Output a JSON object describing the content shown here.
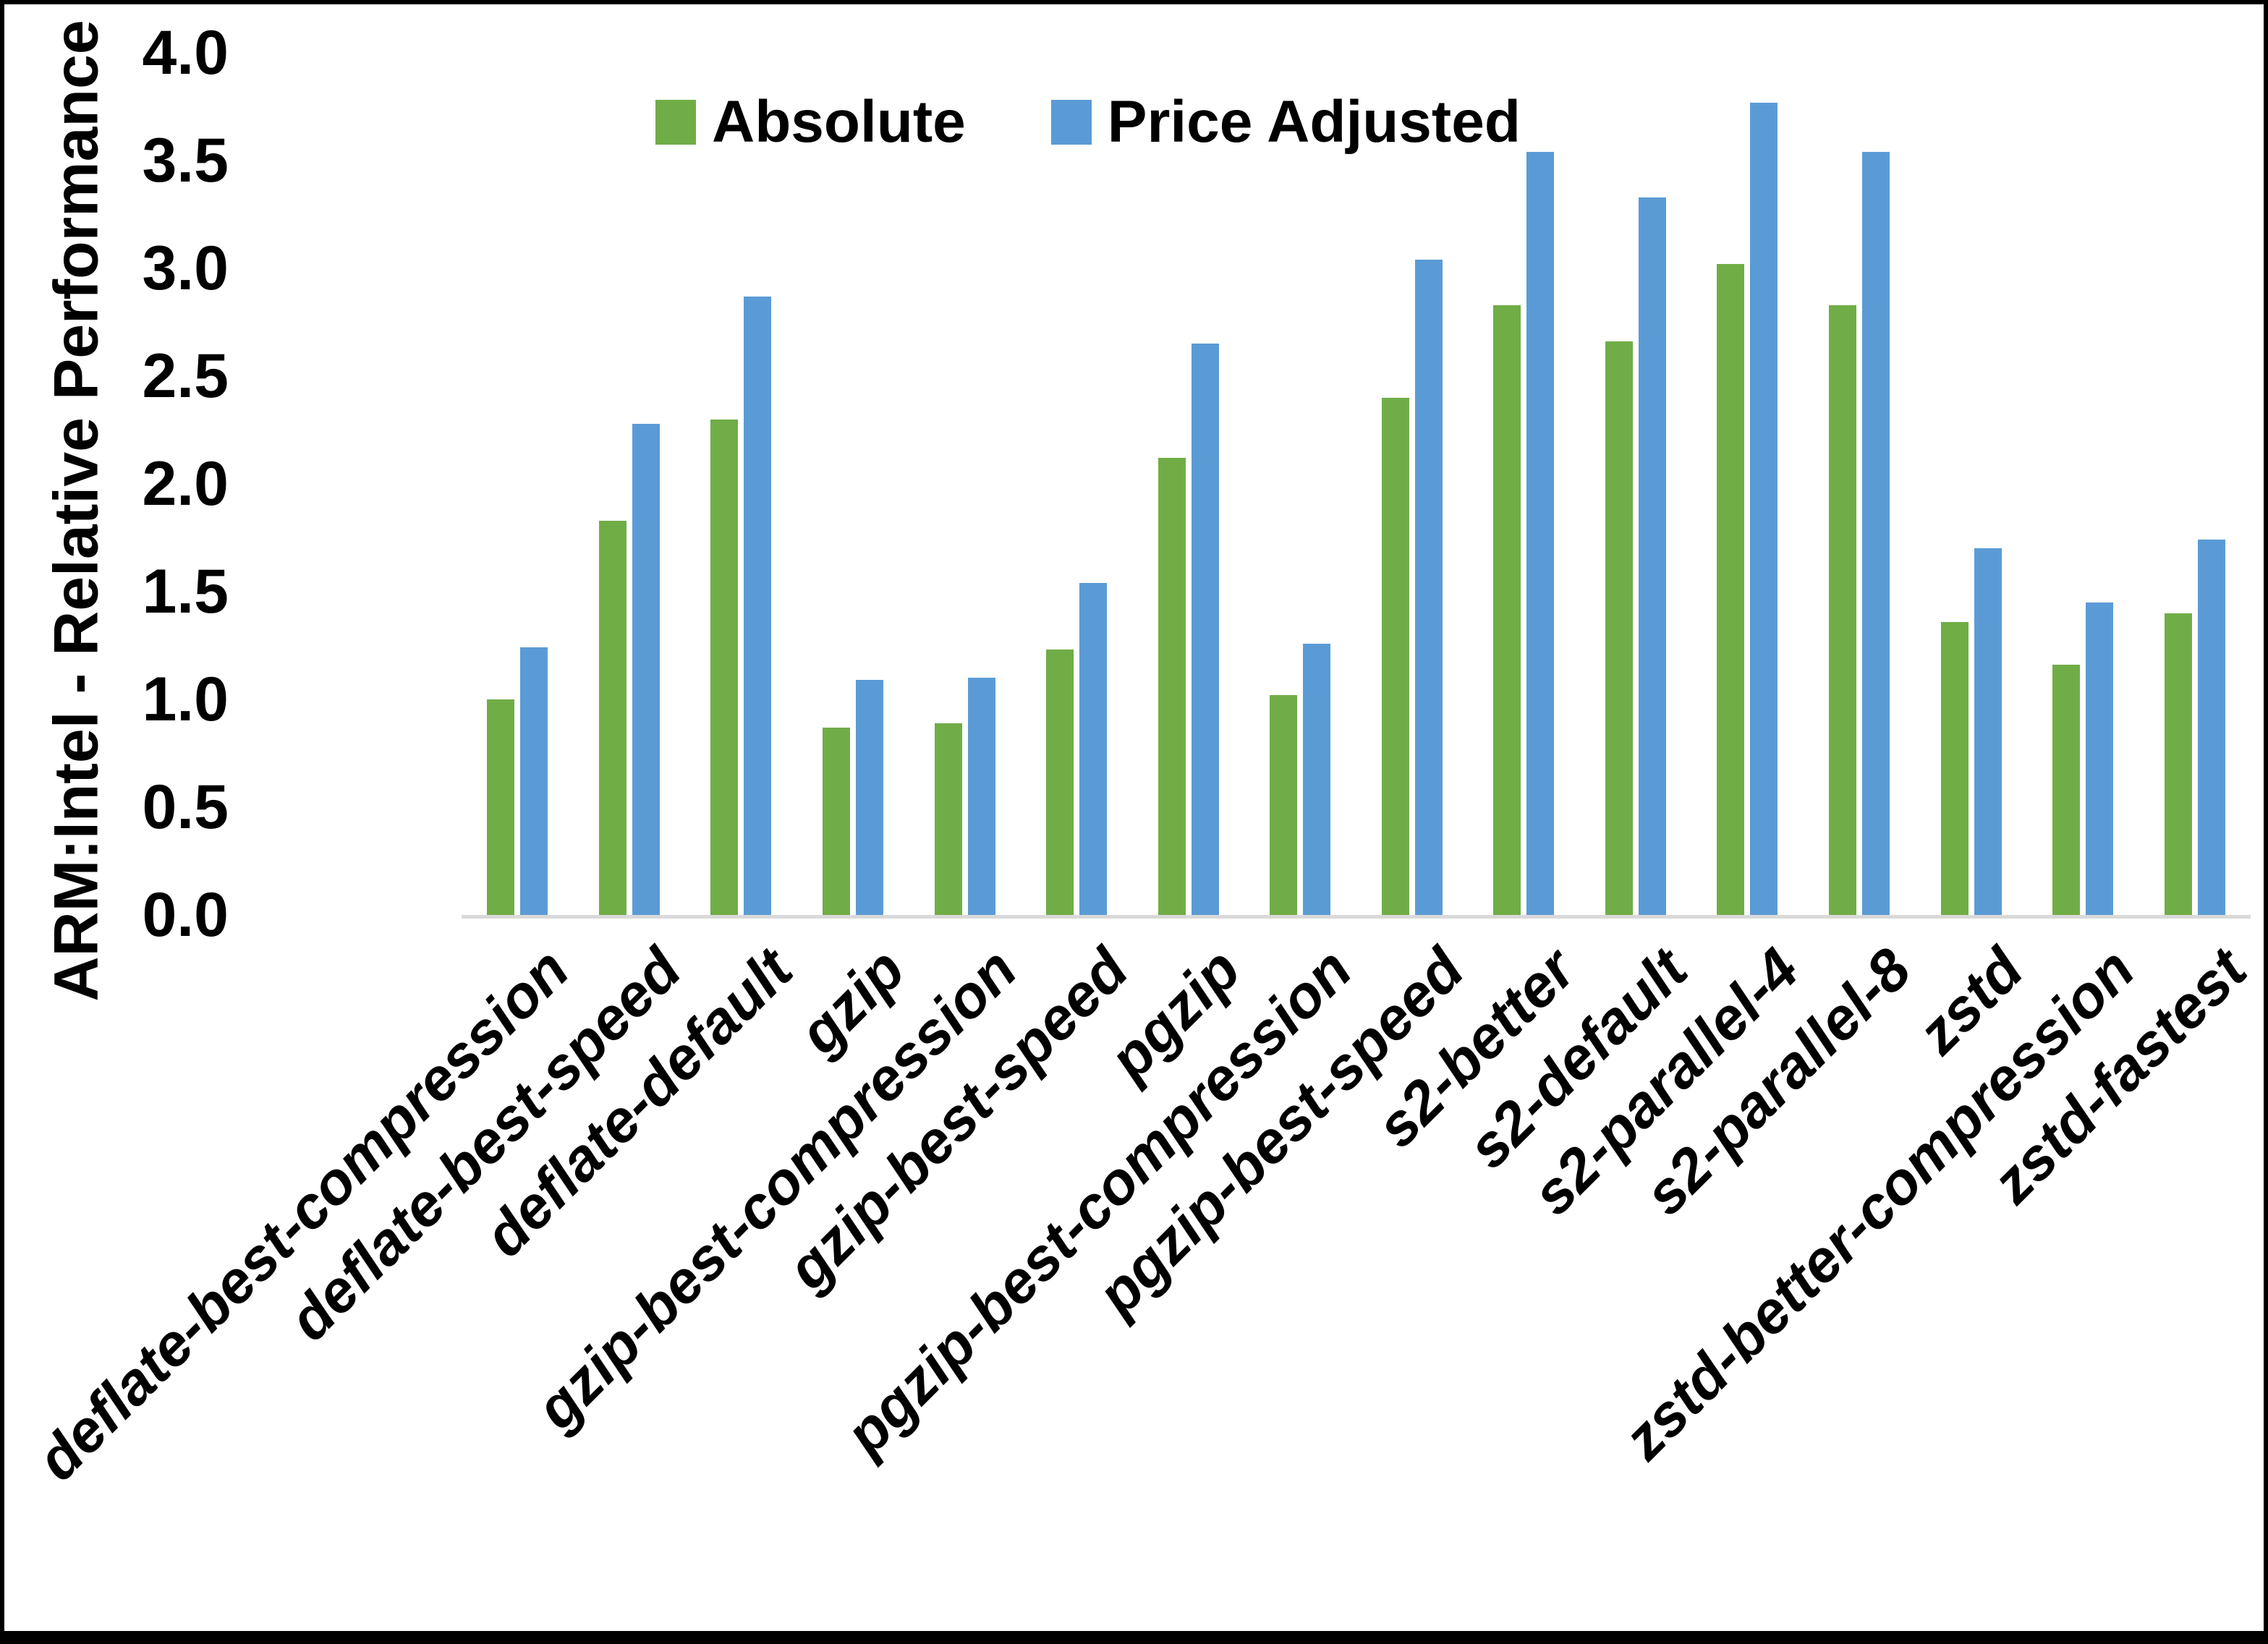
{
  "chart_data": {
    "type": "bar",
    "title": "",
    "xlabel": "",
    "ylabel": "ARM:Intel - Relative Performance",
    "ylim": [
      0,
      4
    ],
    "ytick_labels": [
      "0.0",
      "0.5",
      "1.0",
      "1.5",
      "2.0",
      "2.5",
      "3.0",
      "3.5",
      "4.0"
    ],
    "ytick_values": [
      0,
      0.5,
      1,
      1.5,
      2,
      2.5,
      3,
      3.5,
      4
    ],
    "grid": false,
    "legend_position": "top-center",
    "baseline_color": "#d9d9d9",
    "categories": [
      "deflate-best-compression",
      "deflate-best-speed",
      "deflate-default",
      "gzip",
      "gzip-best-compression",
      "gzip-best-speed",
      "pgzip",
      "pgzip-best-compression",
      "pgzip-best-speed",
      "s2-better",
      "s2-default",
      "s2-parallel-4",
      "s2-parallel-8",
      "zstd",
      "zstd-better-compression",
      "zstd-fastest"
    ],
    "series": [
      {
        "name": "Absolute",
        "color": "#70AD47",
        "values": [
          1.0,
          1.83,
          2.3,
          0.87,
          0.89,
          1.23,
          2.12,
          1.02,
          2.4,
          2.83,
          2.66,
          3.02,
          2.83,
          1.36,
          1.16,
          1.4
        ]
      },
      {
        "name": "Price Adjusted",
        "color": "#5B9BD5",
        "values": [
          1.24,
          2.28,
          2.87,
          1.09,
          1.1,
          1.54,
          2.65,
          1.26,
          3.04,
          3.54,
          3.33,
          3.77,
          3.54,
          1.7,
          1.45,
          1.74
        ]
      }
    ]
  }
}
